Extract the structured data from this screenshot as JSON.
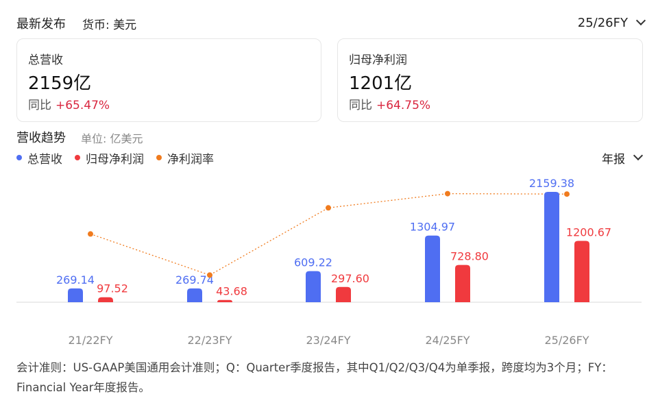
{
  "header": {
    "title": "最新发布",
    "currency": "货币: 美元",
    "fiscal_year": "25/26FY"
  },
  "cards": [
    {
      "label": "总营收",
      "value": "2159亿",
      "yoy_label": "同比",
      "yoy_value": "+65.47%"
    },
    {
      "label": "归母净利润",
      "value": "1201亿",
      "yoy_label": "同比",
      "yoy_value": "+64.75%"
    }
  ],
  "trend": {
    "title": "营收趋势",
    "unit": "单位: 亿美元",
    "period": "年报"
  },
  "colors": {
    "revenue": "#4f6ef2",
    "net_profit": "#f03a3e",
    "margin": "#f07b1e",
    "positive": "#d9263f"
  },
  "chart_data": {
    "type": "bar",
    "categories": [
      "21/22FY",
      "22/23FY",
      "23/24FY",
      "24/25FY",
      "25/26FY"
    ],
    "series": [
      {
        "name": "总营收",
        "kind": "bar",
        "values": [
          269.14,
          269.74,
          609.22,
          1304.97,
          2159.38
        ],
        "labels": [
          "269.14",
          "269.74",
          "609.22",
          "1304.97",
          "2159.38"
        ]
      },
      {
        "name": "归母净利润",
        "kind": "bar",
        "values": [
          97.52,
          43.68,
          297.6,
          728.8,
          1200.67
        ],
        "labels": [
          "97.52",
          "43.68",
          "297.60",
          "728.80",
          "1200.67"
        ]
      },
      {
        "name": "净利润率",
        "kind": "line",
        "style": "dotted",
        "values": [
          36.2,
          16.2,
          48.9,
          55.8,
          55.6
        ]
      }
    ],
    "legend_position": "top-left",
    "grid": false
  },
  "footnote": "会计准则：US-GAAP美国通用会计准则；Q：Quarter季度报告，其中Q1/Q2/Q3/Q4为单季报，跨度均为3个月；FY：Financial Year年度报告。"
}
